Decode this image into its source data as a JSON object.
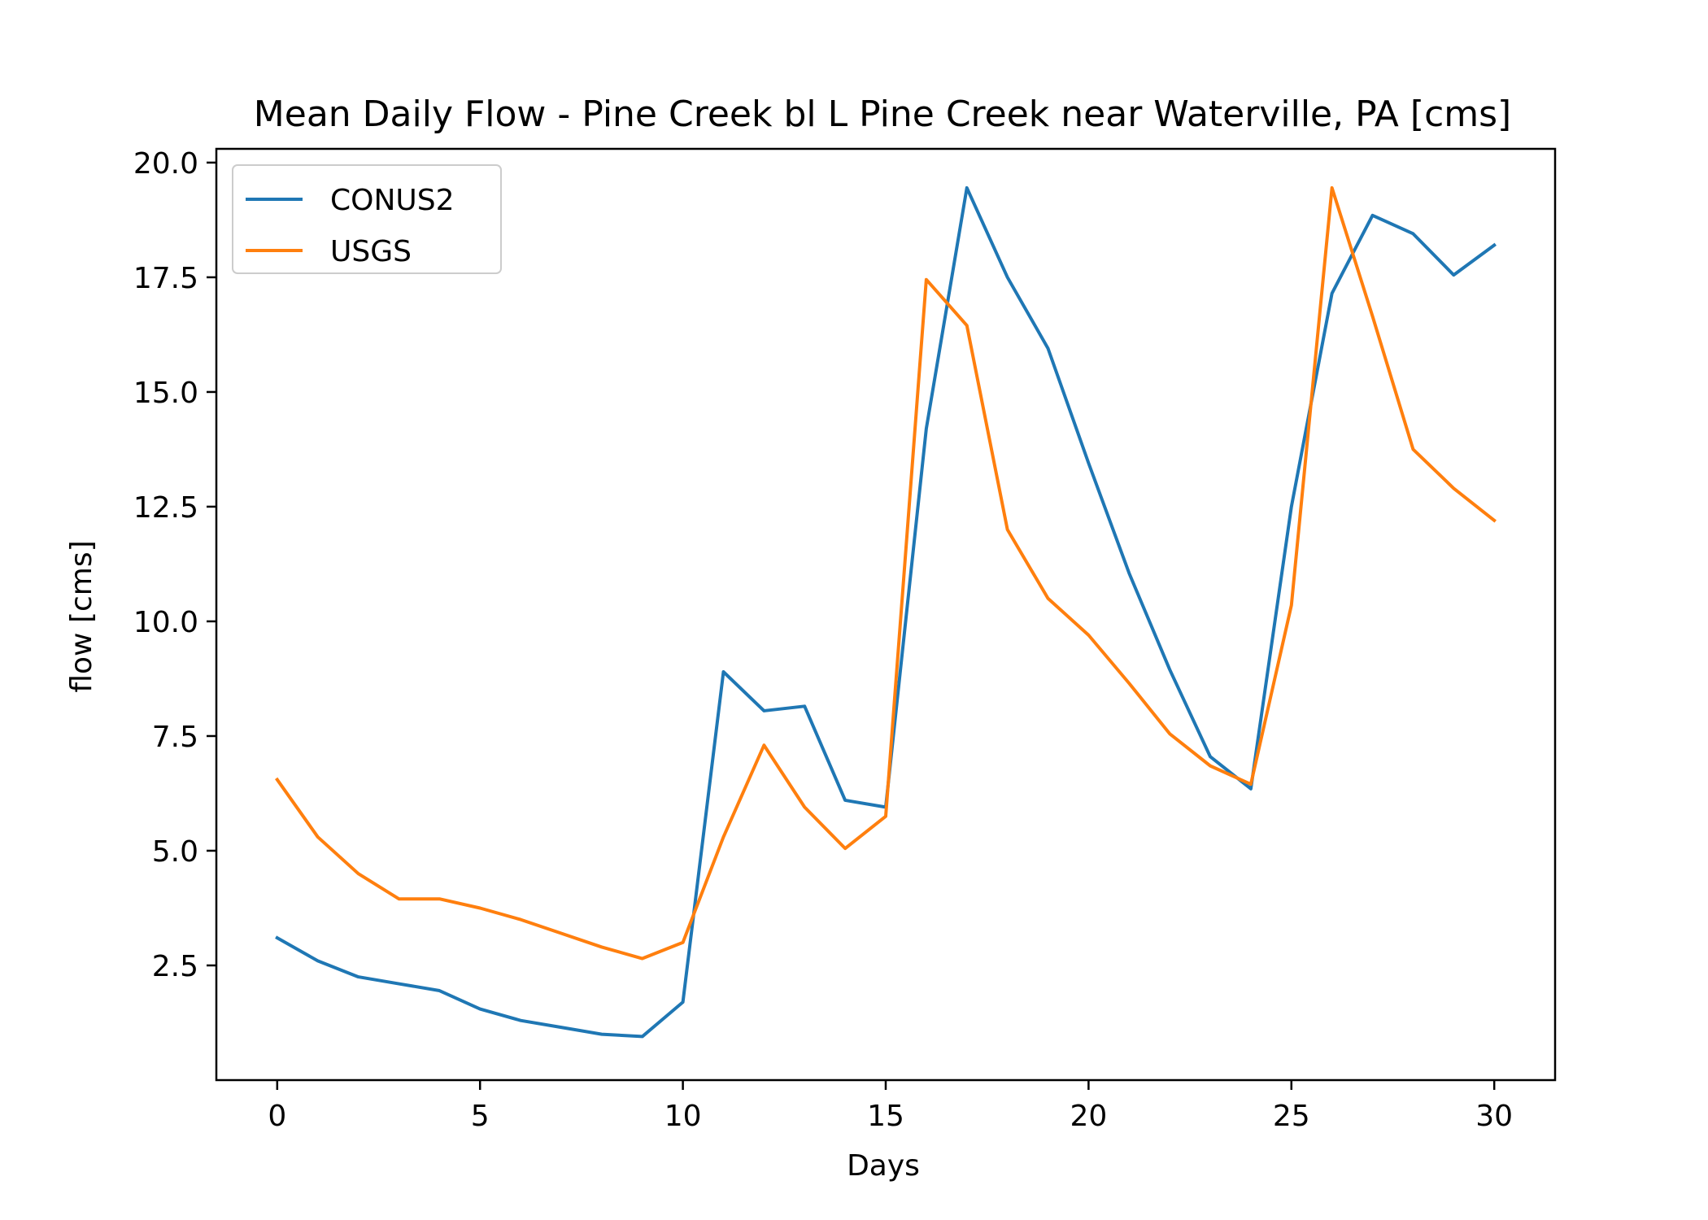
{
  "chart_data": {
    "type": "line",
    "title": "Mean Daily Flow - Pine Creek bl L Pine Creek near Waterville, PA [cms]",
    "xlabel": "Days",
    "ylabel": "flow [cms]",
    "xlim": [
      -1.5,
      31.5
    ],
    "ylim": [
      0.0,
      20.3
    ],
    "xticks": [
      0,
      5,
      10,
      15,
      20,
      25,
      30
    ],
    "xtick_labels": [
      "0",
      "5",
      "10",
      "15",
      "20",
      "25",
      "30"
    ],
    "yticks": [
      2.5,
      5.0,
      7.5,
      10.0,
      12.5,
      15.0,
      17.5,
      20.0
    ],
    "ytick_labels": [
      "2.5",
      "5.0",
      "7.5",
      "10.0",
      "12.5",
      "15.0",
      "17.5",
      "20.0"
    ],
    "grid": false,
    "legend_position": "upper-left",
    "x": [
      0,
      1,
      2,
      3,
      4,
      5,
      6,
      7,
      8,
      9,
      10,
      11,
      12,
      13,
      14,
      15,
      16,
      17,
      18,
      19,
      20,
      21,
      22,
      23,
      24,
      25,
      26,
      27,
      28,
      29,
      30
    ],
    "series": [
      {
        "name": "CONUS2",
        "color": "#1f77b4",
        "values": [
          3.1,
          2.6,
          2.25,
          2.1,
          1.95,
          1.55,
          1.3,
          1.15,
          1.0,
          0.95,
          1.7,
          8.9,
          8.05,
          8.15,
          6.1,
          5.95,
          14.2,
          19.45,
          17.5,
          15.95,
          13.45,
          11.05,
          8.95,
          7.05,
          6.35,
          12.5,
          17.15,
          18.85,
          18.45,
          17.55,
          18.2
        ]
      },
      {
        "name": "USGS",
        "color": "#ff7f0e",
        "values": [
          6.55,
          5.3,
          4.5,
          3.95,
          3.95,
          3.75,
          3.5,
          3.2,
          2.9,
          2.65,
          3.0,
          5.3,
          7.3,
          5.95,
          5.05,
          5.75,
          17.45,
          16.45,
          12.0,
          10.5,
          9.7,
          8.65,
          7.55,
          6.85,
          6.45,
          10.35,
          19.45,
          16.65,
          13.75,
          12.9,
          12.2
        ]
      }
    ]
  }
}
